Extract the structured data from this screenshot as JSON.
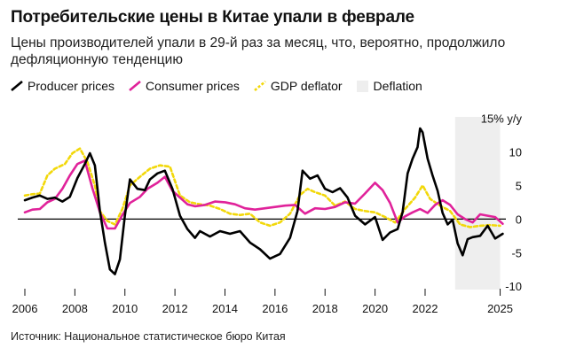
{
  "header": {
    "title": "Потребительские цены в Китае упали в феврале",
    "subtitle": "Цены производителей упали в 29-й раз за месяц, что, вероятно, продолжило дефляционную тенденцию"
  },
  "legend": {
    "producer": "Producer prices",
    "consumer": "Consumer prices",
    "gdp": "GDP deflator",
    "deflation": "Deflation"
  },
  "source": "Источник: Национальное статистическое бюро Китая",
  "colors": {
    "producer": "#000000",
    "consumer": "#e0229a",
    "gdp": "#f2d80a",
    "deflation": "#eeeeee",
    "zero_line": "#000000",
    "text": "#111111"
  },
  "chart_data": {
    "type": "line",
    "title": "Потребительские цены в Китае упали в феврале",
    "subtitle": "Цены производителей упали в 29-й раз за месяц, что, вероятно, продолжило дефляционную тенденцию",
    "xlabel": "",
    "ylabel": "15% y/y",
    "xlim": [
      2006,
      2025.3
    ],
    "ylim": [
      -10.5,
      16
    ],
    "x_ticks": [
      2006,
      2008,
      2010,
      2012,
      2014,
      2016,
      2018,
      2020,
      2022,
      2025
    ],
    "x_tick_labels": [
      "2006",
      "2008",
      "2010",
      "2012",
      "2014",
      "2016",
      "2018",
      "2020",
      "2022",
      "2025"
    ],
    "y_ticks": [
      15,
      10,
      5,
      0,
      -5,
      -10
    ],
    "y_tick_labels": [
      "15% y/y",
      "10",
      "5",
      "0",
      "-5",
      "-10"
    ],
    "shaded_region": {
      "label": "Deflation",
      "x": [
        2023.2,
        2025.0
      ]
    },
    "grid": false,
    "legend_position": "top-left",
    "series": [
      {
        "name": "Producer prices",
        "x": [
          2006.0,
          2006.3,
          2006.6,
          2006.9,
          2007.2,
          2007.5,
          2007.8,
          2008.1,
          2008.4,
          2008.6,
          2008.8,
          2009.0,
          2009.2,
          2009.4,
          2009.6,
          2009.8,
          2010.0,
          2010.2,
          2010.5,
          2010.8,
          2011.0,
          2011.3,
          2011.6,
          2011.9,
          2012.2,
          2012.5,
          2012.8,
          2013.0,
          2013.4,
          2013.8,
          2014.2,
          2014.6,
          2015.0,
          2015.4,
          2015.8,
          2016.2,
          2016.6,
          2016.9,
          2017.1,
          2017.4,
          2017.7,
          2018.0,
          2018.3,
          2018.6,
          2018.9,
          2019.2,
          2019.6,
          2020.0,
          2020.3,
          2020.6,
          2020.9,
          2021.1,
          2021.3,
          2021.5,
          2021.7,
          2021.8,
          2021.9,
          2022.1,
          2022.3,
          2022.5,
          2022.7,
          2022.9,
          2023.1,
          2023.3,
          2023.5,
          2023.7,
          2023.9,
          2024.2,
          2024.5,
          2024.8,
          2025.1
        ],
        "values": [
          2.8,
          3.2,
          3.5,
          3.0,
          3.2,
          2.6,
          3.3,
          6.1,
          8.2,
          9.8,
          8.0,
          1.2,
          -3.5,
          -7.5,
          -8.2,
          -6.0,
          0.5,
          5.9,
          4.5,
          4.3,
          5.9,
          6.8,
          7.2,
          4.5,
          0.5,
          -1.5,
          -2.8,
          -1.8,
          -2.6,
          -1.8,
          -2.2,
          -1.8,
          -3.5,
          -4.5,
          -5.9,
          -5.2,
          -2.8,
          1.2,
          7.2,
          6.0,
          6.5,
          4.5,
          4.0,
          4.6,
          3.2,
          0.5,
          -0.8,
          0.3,
          -3.1,
          -2.0,
          -1.5,
          1.0,
          6.8,
          9.0,
          10.7,
          13.5,
          12.9,
          9.0,
          6.5,
          4.2,
          0.9,
          -0.8,
          -0.1,
          -3.6,
          -5.4,
          -3.0,
          -2.7,
          -2.5,
          -1.0,
          -2.9,
          -2.2
        ]
      },
      {
        "name": "Consumer prices",
        "x": [
          2006.0,
          2006.3,
          2006.6,
          2006.9,
          2007.2,
          2007.5,
          2007.8,
          2008.1,
          2008.4,
          2008.7,
          2009.0,
          2009.3,
          2009.6,
          2009.9,
          2010.2,
          2010.6,
          2010.9,
          2011.3,
          2011.6,
          2011.9,
          2012.2,
          2012.5,
          2012.8,
          2013.2,
          2013.6,
          2014.0,
          2014.4,
          2014.8,
          2015.2,
          2015.6,
          2016.0,
          2016.4,
          2016.8,
          2017.2,
          2017.6,
          2018.0,
          2018.4,
          2018.8,
          2019.2,
          2019.6,
          2020.0,
          2020.3,
          2020.6,
          2020.9,
          2021.2,
          2021.5,
          2021.8,
          2022.1,
          2022.4,
          2022.7,
          2023.0,
          2023.3,
          2023.6,
          2023.9,
          2024.2,
          2024.5,
          2024.8,
          2025.1
        ],
        "values": [
          1.0,
          1.4,
          1.5,
          2.5,
          3.0,
          4.5,
          6.5,
          8.2,
          8.7,
          4.6,
          1.0,
          -1.4,
          -1.4,
          0.6,
          2.4,
          3.3,
          4.5,
          5.4,
          6.3,
          4.2,
          3.2,
          2.2,
          1.9,
          2.1,
          2.6,
          2.5,
          2.2,
          1.6,
          1.4,
          1.6,
          1.8,
          2.0,
          2.1,
          0.8,
          1.6,
          1.5,
          1.8,
          2.5,
          2.3,
          3.8,
          5.4,
          4.3,
          2.4,
          -0.5,
          0.4,
          1.0,
          1.5,
          0.9,
          2.1,
          2.8,
          2.1,
          0.7,
          0.0,
          -0.5,
          0.7,
          0.5,
          0.3,
          -0.7
        ]
      },
      {
        "name": "GDP deflator",
        "x": [
          2006.0,
          2006.3,
          2006.6,
          2006.9,
          2007.2,
          2007.6,
          2007.9,
          2008.2,
          2008.5,
          2008.8,
          2009.0,
          2009.3,
          2009.6,
          2009.9,
          2010.2,
          2010.6,
          2011.0,
          2011.4,
          2011.8,
          2012.2,
          2012.6,
          2013.0,
          2013.4,
          2013.8,
          2014.2,
          2014.6,
          2015.0,
          2015.4,
          2015.8,
          2016.2,
          2016.6,
          2017.0,
          2017.3,
          2017.6,
          2018.0,
          2018.4,
          2018.8,
          2019.2,
          2019.6,
          2020.0,
          2020.4,
          2020.8,
          2021.2,
          2021.6,
          2021.9,
          2022.2,
          2022.6,
          2023.0,
          2023.4,
          2023.8,
          2024.2,
          2024.6,
          2025.0
        ],
        "values": [
          3.5,
          3.7,
          3.8,
          6.5,
          7.5,
          8.2,
          9.8,
          10.5,
          8.5,
          5.0,
          1.2,
          -0.3,
          -0.8,
          1.5,
          5.0,
          6.3,
          7.5,
          8.0,
          7.8,
          3.5,
          2.5,
          2.2,
          2.0,
          1.5,
          0.8,
          0.6,
          0.8,
          -0.5,
          -1.0,
          -0.5,
          0.8,
          3.6,
          4.5,
          4.0,
          3.5,
          2.0,
          2.6,
          1.5,
          1.2,
          1.0,
          0.3,
          -0.5,
          1.5,
          3.2,
          5.0,
          3.0,
          2.0,
          1.2,
          -0.8,
          -1.2,
          -1.0,
          -0.9,
          -1.0
        ]
      }
    ]
  }
}
